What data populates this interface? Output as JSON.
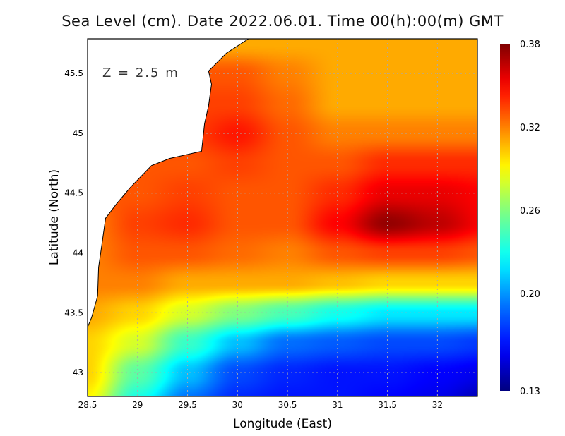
{
  "chart_data": {
    "type": "heatmap",
    "title": "Sea Level (cm). Date 2022.06.01. Time 00(h):00(m) GMT",
    "annotation": "Z = 2.5 m",
    "xlabel": "Longitude (East)",
    "ylabel": "Latitude (North)",
    "xlim": [
      28.5,
      32.4
    ],
    "ylim": [
      42.8,
      45.79
    ],
    "xticks": [
      "28.5",
      "29",
      "29.5",
      "30",
      "30.5",
      "31",
      "31.5",
      "32"
    ],
    "xtick_values": [
      28.5,
      29,
      29.5,
      30,
      30.5,
      31,
      31.5,
      32
    ],
    "yticks": [
      "43",
      "43.5",
      "44",
      "44.5",
      "45",
      "45.5"
    ],
    "ytick_values": [
      43,
      43.5,
      44,
      44.5,
      45,
      45.5
    ],
    "grid": true,
    "colorbar": {
      "ticks": [
        "0.38",
        "0.32",
        "0.26",
        "0.20",
        "0.13"
      ],
      "tick_values": [
        0.38,
        0.32,
        0.26,
        0.2,
        0.13
      ],
      "range": [
        0.13,
        0.38
      ],
      "placement": "right"
    },
    "grid_lon": [
      28.5,
      29,
      29.5,
      30,
      30.5,
      31,
      31.5,
      32,
      32.5
    ],
    "grid_lat": [
      45.75,
      45.5,
      45.25,
      45.0,
      44.75,
      44.5,
      44.25,
      44.0,
      43.75,
      43.5,
      43.25,
      43.0,
      42.75
    ],
    "values": [
      [
        0.31,
        0.31,
        0.31,
        0.31,
        0.31,
        0.31,
        0.31,
        0.31,
        0.31
      ],
      [
        0.33,
        0.33,
        0.33,
        0.33,
        0.32,
        0.31,
        0.31,
        0.31,
        0.31
      ],
      [
        0.335,
        0.335,
        0.335,
        0.335,
        0.325,
        0.31,
        0.31,
        0.31,
        0.31
      ],
      [
        0.335,
        0.335,
        0.335,
        0.345,
        0.33,
        0.32,
        0.32,
        0.32,
        0.32
      ],
      [
        0.33,
        0.33,
        0.33,
        0.335,
        0.33,
        0.33,
        0.34,
        0.34,
        0.34
      ],
      [
        0.33,
        0.33,
        0.335,
        0.33,
        0.33,
        0.34,
        0.355,
        0.355,
        0.35
      ],
      [
        0.32,
        0.335,
        0.34,
        0.33,
        0.33,
        0.35,
        0.375,
        0.365,
        0.35
      ],
      [
        0.32,
        0.33,
        0.33,
        0.325,
        0.32,
        0.33,
        0.335,
        0.335,
        0.33
      ],
      [
        0.32,
        0.32,
        0.31,
        0.31,
        0.31,
        0.305,
        0.3,
        0.3,
        0.3
      ],
      [
        0.31,
        0.3,
        0.28,
        0.26,
        0.245,
        0.23,
        0.22,
        0.22,
        0.22
      ],
      [
        0.3,
        0.28,
        0.24,
        0.21,
        0.19,
        0.185,
        0.18,
        0.18,
        0.175
      ],
      [
        0.3,
        0.25,
        0.21,
        0.18,
        0.17,
        0.165,
        0.165,
        0.16,
        0.155
      ],
      [
        0.29,
        0.23,
        0.19,
        0.17,
        0.165,
        0.165,
        0.16,
        0.155,
        0.14
      ]
    ],
    "coastline": [
      [
        30.11,
        45.79
      ],
      [
        29.89,
        45.67
      ],
      [
        29.71,
        45.52
      ],
      [
        29.74,
        45.41
      ],
      [
        29.71,
        45.23
      ],
      [
        29.67,
        45.08
      ],
      [
        29.64,
        44.85
      ],
      [
        29.32,
        44.79
      ],
      [
        29.14,
        44.73
      ],
      [
        28.93,
        44.55
      ],
      [
        28.79,
        44.41
      ],
      [
        28.68,
        44.29
      ],
      [
        28.65,
        44.11
      ],
      [
        28.61,
        43.88
      ],
      [
        28.6,
        43.64
      ],
      [
        28.54,
        43.46
      ],
      [
        28.5,
        43.38
      ]
    ],
    "colors": {
      "land": "#ffffff",
      "grid": "#aaaaaa"
    }
  }
}
